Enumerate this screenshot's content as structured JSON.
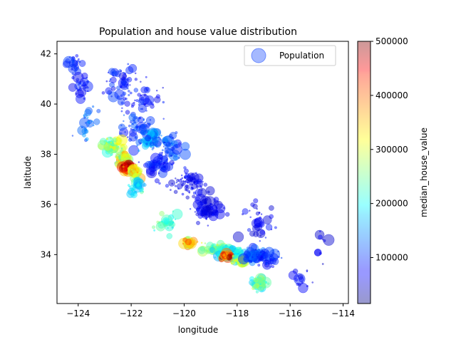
{
  "chart_data": {
    "type": "scatter",
    "title": "Population and house value distribution",
    "xlabel": "longitude",
    "ylabel": "latitude",
    "xlim": [
      -124.8,
      -113.8
    ],
    "ylim": [
      32.05,
      42.5
    ],
    "xticks": [
      -124,
      -122,
      -120,
      -118,
      -116,
      -114
    ],
    "xtick_labels": [
      "−124",
      "−122",
      "−120",
      "−118",
      "−116",
      "−114"
    ],
    "yticks": [
      34,
      36,
      38,
      40,
      42
    ],
    "ytick_labels": [
      "34",
      "36",
      "38",
      "40",
      "42"
    ],
    "colorbar": {
      "label": "median_house_value",
      "colormap": "jet",
      "alpha": 0.4,
      "range": [
        14999,
        500000
      ],
      "ticks": [
        100000,
        200000,
        300000,
        400000,
        500000
      ],
      "tick_labels": [
        "100000",
        "200000",
        "300000",
        "400000",
        "500000"
      ]
    },
    "legend": {
      "entry": "Population",
      "placement": "top-right",
      "marker_color": "#1f4fff"
    },
    "grid": false,
    "size_encoding": "population",
    "color_encoding": "median_house_value",
    "clusters": [
      {
        "lon": -124.15,
        "lat": 41.6,
        "sx": 0.25,
        "sy": 0.35,
        "n": 25,
        "value": 90000
      },
      {
        "lon": -123.9,
        "lat": 40.7,
        "sx": 0.3,
        "sy": 0.4,
        "n": 30,
        "value": 85000
      },
      {
        "lon": -122.4,
        "lat": 40.8,
        "sx": 0.5,
        "sy": 0.7,
        "n": 55,
        "value": 85000
      },
      {
        "lon": -121.5,
        "lat": 40.1,
        "sx": 0.7,
        "sy": 0.9,
        "n": 45,
        "value": 80000
      },
      {
        "lon": -123.6,
        "lat": 39.2,
        "sx": 0.3,
        "sy": 0.5,
        "n": 25,
        "value": 130000
      },
      {
        "lon": -121.8,
        "lat": 39.1,
        "sx": 0.45,
        "sy": 0.6,
        "n": 60,
        "value": 100000
      },
      {
        "lon": -121.3,
        "lat": 38.6,
        "sx": 0.3,
        "sy": 0.3,
        "n": 70,
        "value": 150000
      },
      {
        "lon": -120.6,
        "lat": 38.4,
        "sx": 0.45,
        "sy": 0.4,
        "n": 50,
        "value": 110000
      },
      {
        "lon": -122.7,
        "lat": 38.3,
        "sx": 0.35,
        "sy": 0.3,
        "n": 55,
        "value": 260000
      },
      {
        "lon": -122.3,
        "lat": 37.8,
        "sx": 0.2,
        "sy": 0.2,
        "n": 80,
        "value": 300000
      },
      {
        "lon": -122.15,
        "lat": 37.45,
        "sx": 0.15,
        "sy": 0.15,
        "n": 60,
        "value": 440000
      },
      {
        "lon": -121.9,
        "lat": 37.3,
        "sx": 0.2,
        "sy": 0.2,
        "n": 50,
        "value": 300000
      },
      {
        "lon": -121.8,
        "lat": 36.7,
        "sx": 0.25,
        "sy": 0.25,
        "n": 35,
        "value": 200000
      },
      {
        "lon": -120.9,
        "lat": 37.6,
        "sx": 0.45,
        "sy": 0.35,
        "n": 60,
        "value": 85000
      },
      {
        "lon": -119.8,
        "lat": 36.8,
        "sx": 0.5,
        "sy": 0.4,
        "n": 80,
        "value": 70000
      },
      {
        "lon": -119.1,
        "lat": 35.8,
        "sx": 0.45,
        "sy": 0.45,
        "n": 60,
        "value": 70000
      },
      {
        "lon": -120.6,
        "lat": 35.2,
        "sx": 0.35,
        "sy": 0.3,
        "n": 30,
        "value": 220000
      },
      {
        "lon": -119.8,
        "lat": 34.45,
        "sx": 0.3,
        "sy": 0.1,
        "n": 30,
        "value": 330000
      },
      {
        "lon": -118.9,
        "lat": 34.25,
        "sx": 0.3,
        "sy": 0.15,
        "n": 45,
        "value": 250000
      },
      {
        "lon": -118.3,
        "lat": 34.05,
        "sx": 0.35,
        "sy": 0.18,
        "n": 130,
        "value": 200000
      },
      {
        "lon": -118.4,
        "lat": 33.95,
        "sx": 0.2,
        "sy": 0.1,
        "n": 50,
        "value": 450000
      },
      {
        "lon": -117.9,
        "lat": 33.75,
        "sx": 0.2,
        "sy": 0.15,
        "n": 70,
        "value": 260000
      },
      {
        "lon": -117.3,
        "lat": 34.0,
        "sx": 0.35,
        "sy": 0.2,
        "n": 80,
        "value": 110000
      },
      {
        "lon": -116.9,
        "lat": 33.8,
        "sx": 0.6,
        "sy": 0.35,
        "n": 40,
        "value": 90000
      },
      {
        "lon": -117.15,
        "lat": 32.85,
        "sx": 0.2,
        "sy": 0.2,
        "n": 60,
        "value": 230000
      },
      {
        "lon": -115.6,
        "lat": 33.0,
        "sx": 0.3,
        "sy": 0.3,
        "n": 15,
        "value": 70000
      },
      {
        "lon": -114.8,
        "lat": 34.3,
        "sx": 0.25,
        "sy": 0.5,
        "n": 10,
        "value": 60000
      },
      {
        "lon": -117.2,
        "lat": 35.3,
        "sx": 0.6,
        "sy": 0.5,
        "n": 35,
        "value": 70000
      }
    ]
  }
}
